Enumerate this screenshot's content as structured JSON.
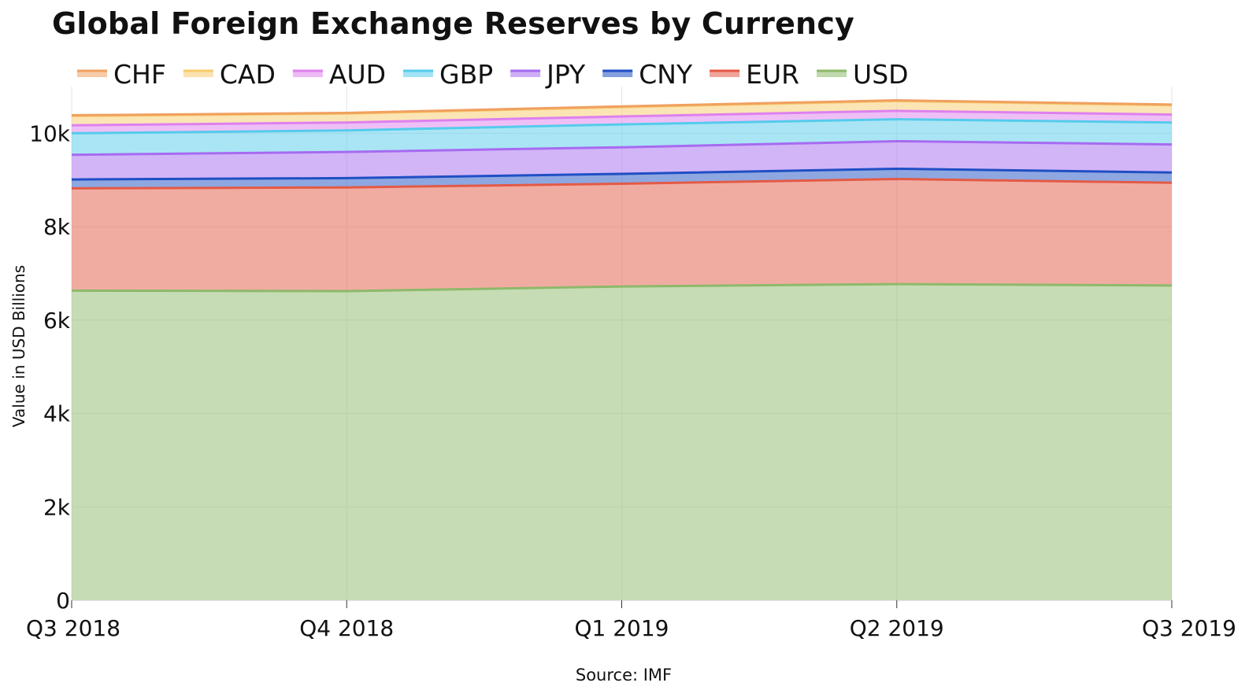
{
  "chart_data": {
    "type": "area",
    "stacked": true,
    "title": "Global Foreign Exchange Reserves by Currency",
    "ylabel": "Value in USD Billions",
    "source": "Source: IMF",
    "categories": [
      "Q3 2018",
      "Q4 2018",
      "Q1 2019",
      "Q2 2019",
      "Q3 2019"
    ],
    "ylim": [
      0,
      11000
    ],
    "yticks": [
      {
        "value": 0,
        "label": "0"
      },
      {
        "value": 2000,
        "label": "2k"
      },
      {
        "value": 4000,
        "label": "4k"
      },
      {
        "value": 6000,
        "label": "6k"
      },
      {
        "value": 8000,
        "label": "8k"
      },
      {
        "value": 10000,
        "label": "10k"
      }
    ],
    "grid": true,
    "legend_position": "top",
    "series": [
      {
        "name": "USD",
        "color": "#8db96a",
        "values": [
          6630,
          6620,
          6720,
          6770,
          6740
        ]
      },
      {
        "name": "EUR",
        "color": "#e35a45",
        "values": [
          2190,
          2220,
          2200,
          2250,
          2200
        ]
      },
      {
        "name": "CNY",
        "color": "#1f4fc4",
        "values": [
          190,
          200,
          210,
          220,
          220
        ]
      },
      {
        "name": "JPY",
        "color": "#a66bf0",
        "values": [
          530,
          560,
          570,
          590,
          600
        ]
      },
      {
        "name": "GBP",
        "color": "#55cbec",
        "values": [
          460,
          460,
          490,
          470,
          470
        ]
      },
      {
        "name": "AUD",
        "color": "#de80ee",
        "values": [
          170,
          170,
          170,
          180,
          170
        ]
      },
      {
        "name": "CAD",
        "color": "#f7cb6b",
        "values": [
          200,
          190,
          200,
          210,
          200
        ]
      },
      {
        "name": "CHF",
        "color": "#f0a060",
        "values": [
          15,
          15,
          15,
          15,
          15
        ]
      }
    ],
    "legend_order": [
      "CHF",
      "CAD",
      "AUD",
      "GBP",
      "JPY",
      "CNY",
      "EUR",
      "USD"
    ]
  }
}
